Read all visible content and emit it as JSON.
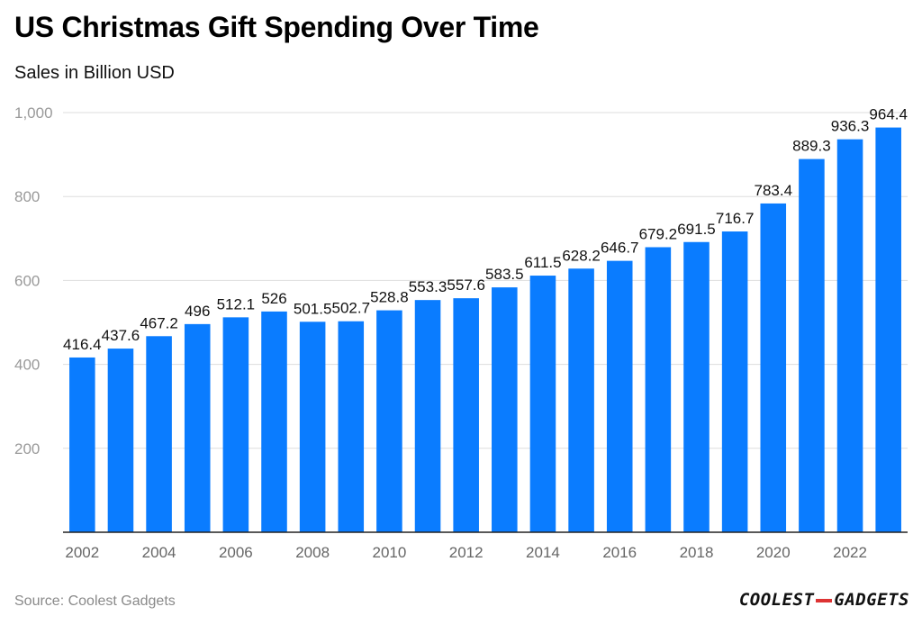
{
  "title": "US Christmas Gift Spending Over Time",
  "subtitle": "Sales in Billion USD",
  "source": "Source: Coolest Gadgets",
  "logo": {
    "left": "COOLEST",
    "right": "GADGETS"
  },
  "colors": {
    "bar": "#0a7cff",
    "grid": "#dddddd",
    "axis": "#222222",
    "tick": "#9a9a9a"
  },
  "chart_data": {
    "type": "bar",
    "title": "US Christmas Gift Spending Over Time",
    "ylabel": "Sales in Billion USD",
    "xlabel": "",
    "ylim": [
      0,
      1000
    ],
    "yticks": [
      200,
      400,
      600,
      800,
      1000
    ],
    "ytick_labels": [
      "200",
      "400",
      "600",
      "800",
      "1,000"
    ],
    "grid": true,
    "categories": [
      "2002",
      "2003",
      "2004",
      "2005",
      "2006",
      "2007",
      "2008",
      "2009",
      "2010",
      "2011",
      "2012",
      "2013",
      "2014",
      "2015",
      "2016",
      "2017",
      "2018",
      "2019",
      "2020",
      "2021",
      "2022",
      "2023"
    ],
    "xtick_labels": [
      "2002",
      "",
      "2004",
      "",
      "2006",
      "",
      "2008",
      "",
      "2010",
      "",
      "2012",
      "",
      "2014",
      "",
      "2016",
      "",
      "2018",
      "",
      "2020",
      "",
      "2022",
      ""
    ],
    "values": [
      416.4,
      437.6,
      467.2,
      496,
      512.1,
      526,
      501.5,
      502.7,
      528.8,
      553.3,
      557.6,
      583.5,
      611.5,
      628.2,
      646.7,
      679.2,
      691.5,
      716.7,
      783.4,
      889.3,
      936.3,
      964.4
    ],
    "value_labels": [
      "416.4",
      "437.6",
      "467.2",
      "496",
      "512.1",
      "526",
      "501.5",
      "502.7",
      "528.8",
      "553.3",
      "557.6",
      "583.5",
      "611.5",
      "628.2",
      "646.7",
      "679.2",
      "691.5",
      "716.7",
      "783.4",
      "889.3",
      "936.3",
      "964.4"
    ]
  }
}
